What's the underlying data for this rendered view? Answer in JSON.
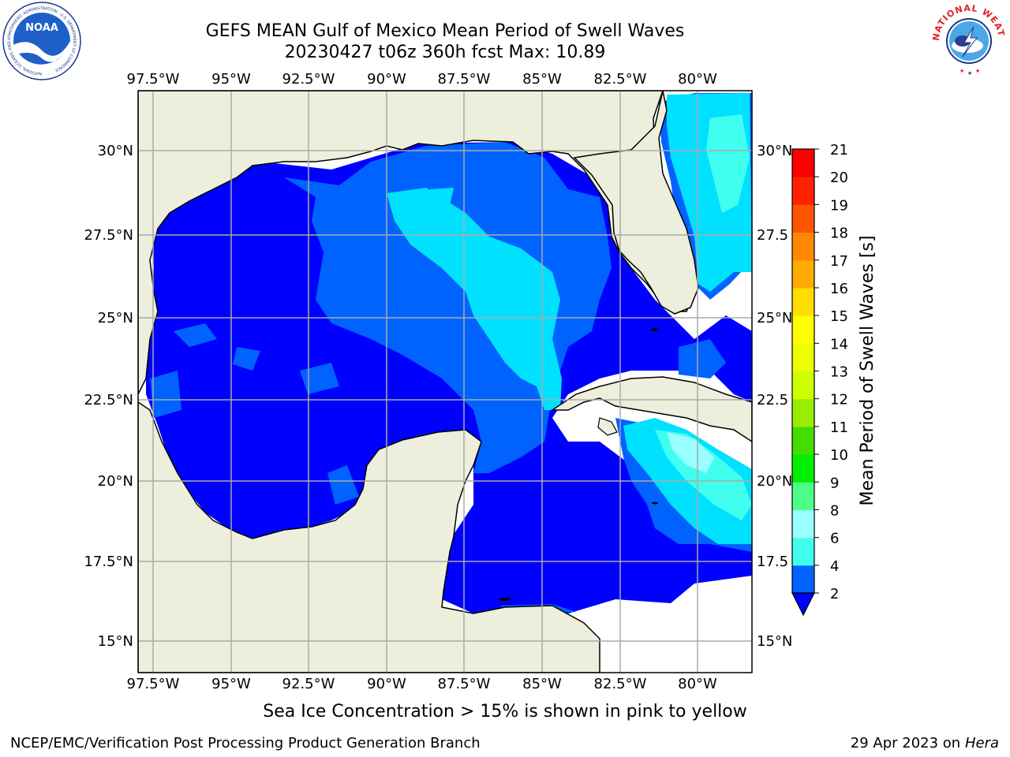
{
  "header": {
    "title_line1": "GEFS MEAN Gulf of Mexico Mean Period of Swell Waves",
    "title_line2": "20230427 t06z 360h fcst   Max: 10.89"
  },
  "logos": {
    "noaa_text": "NOAA",
    "noaa_ring": "NATIONAL OCEANIC AND ATMOSPHERIC ADMINISTRATION · U.S. DEPARTMENT OF COMMERCE",
    "nws_ring": "NATIONAL WEATHER SERVICE"
  },
  "map": {
    "lon_labels": [
      "97.5°W",
      "95°W",
      "92.5°W",
      "90°W",
      "87.5°W",
      "85°W",
      "82.5°W",
      "80°W"
    ],
    "lat_labels_left": [
      "30°N",
      "27.5°N",
      "25°N",
      "22.5°N",
      "20°N",
      "17.5°N",
      "15°N"
    ],
    "lat_labels_right": [
      "30°N",
      "27.5",
      "25°N",
      "22.5",
      "20°N",
      "17.5",
      "15°N"
    ],
    "colors": {
      "land": "#eeeedd",
      "ocean_missing": "#ffffff",
      "grid": "#aaaaaa"
    }
  },
  "colorbar": {
    "label": "Mean Period of Swell Waves [s]",
    "ticks": [
      "2",
      "4",
      "6",
      "8",
      "9",
      "10",
      "11",
      "12",
      "13",
      "14",
      "15",
      "16",
      "17",
      "18",
      "19",
      "20",
      "21"
    ],
    "colors": [
      "#0063ff",
      "#00e1ff",
      "#40ffee",
      "#99ffff",
      "#4dff88",
      "#00ee00",
      "#44dd00",
      "#99ee00",
      "#ccff00",
      "#eeff00",
      "#ffff00",
      "#ffdd00",
      "#ffaa00",
      "#ff8800",
      "#ff5500",
      "#ff2200",
      "#ff0000"
    ],
    "under_color": "#0000ff"
  },
  "footer": {
    "note": "Sea Ice Concentration > 15% is shown in pink to yellow",
    "left": "NCEP/EMC/Verification Post Processing Product Generation Branch",
    "right_prefix": "29 Apr 2023 on ",
    "right_host": "Hera"
  }
}
